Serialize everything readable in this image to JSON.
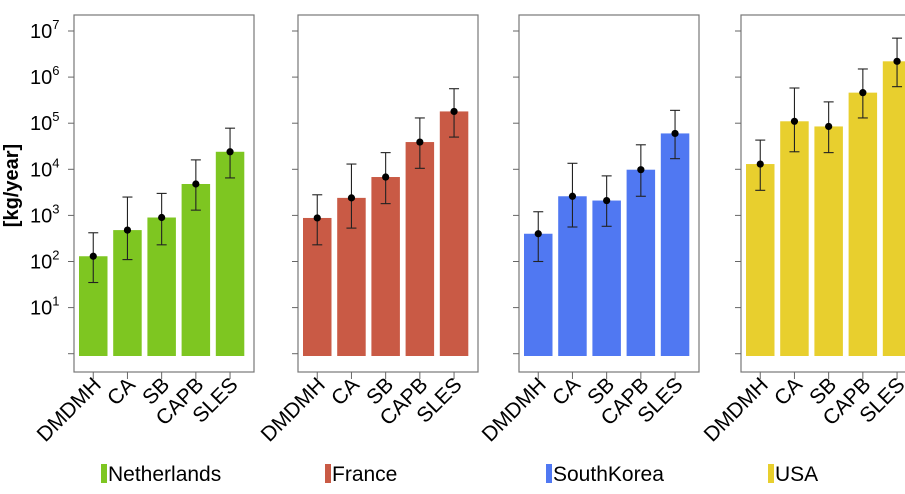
{
  "chart_data": {
    "type": "bar",
    "ylabel": "[kg/year]",
    "yscale": "log",
    "ylim": [
      1,
      10000000
    ],
    "yticks": [
      {
        "base": "10",
        "exp": "1"
      },
      {
        "base": "10",
        "exp": "2"
      },
      {
        "base": "10",
        "exp": "3"
      },
      {
        "base": "10",
        "exp": "4"
      },
      {
        "base": "10",
        "exp": "5"
      },
      {
        "base": "10",
        "exp": "6"
      },
      {
        "base": "10",
        "exp": "7"
      }
    ],
    "categories": [
      "DMDMH",
      "CA",
      "SB",
      "CAPB",
      "SLES"
    ],
    "panels": [
      {
        "name": "Netherlands",
        "color": "#7ec621",
        "values": [
          130,
          480,
          900,
          4800,
          24000
        ],
        "err_low": [
          35,
          110,
          230,
          1300,
          6500
        ],
        "err_high": [
          420,
          2500,
          3000,
          16000,
          78000
        ]
      },
      {
        "name": "France",
        "color": "#c95a45",
        "values": [
          880,
          2400,
          6800,
          39000,
          180000
        ],
        "err_low": [
          230,
          530,
          1800,
          10500,
          50000
        ],
        "err_high": [
          2800,
          13000,
          23000,
          130000,
          560000
        ]
      },
      {
        "name": "SouthKorea",
        "color": "#5078f2",
        "values": [
          400,
          2600,
          2100,
          9800,
          60000
        ],
        "err_low": [
          100,
          560,
          580,
          2600,
          17000
        ],
        "err_high": [
          1200,
          13500,
          7200,
          34000,
          190000
        ]
      },
      {
        "name": "USA",
        "color": "#e8cf2e",
        "values": [
          13000,
          110000,
          85000,
          460000,
          2200000
        ],
        "err_low": [
          3500,
          24000,
          23000,
          130000,
          620000
        ],
        "err_high": [
          43000,
          580000,
          290000,
          1500000,
          7000000
        ]
      }
    ]
  }
}
